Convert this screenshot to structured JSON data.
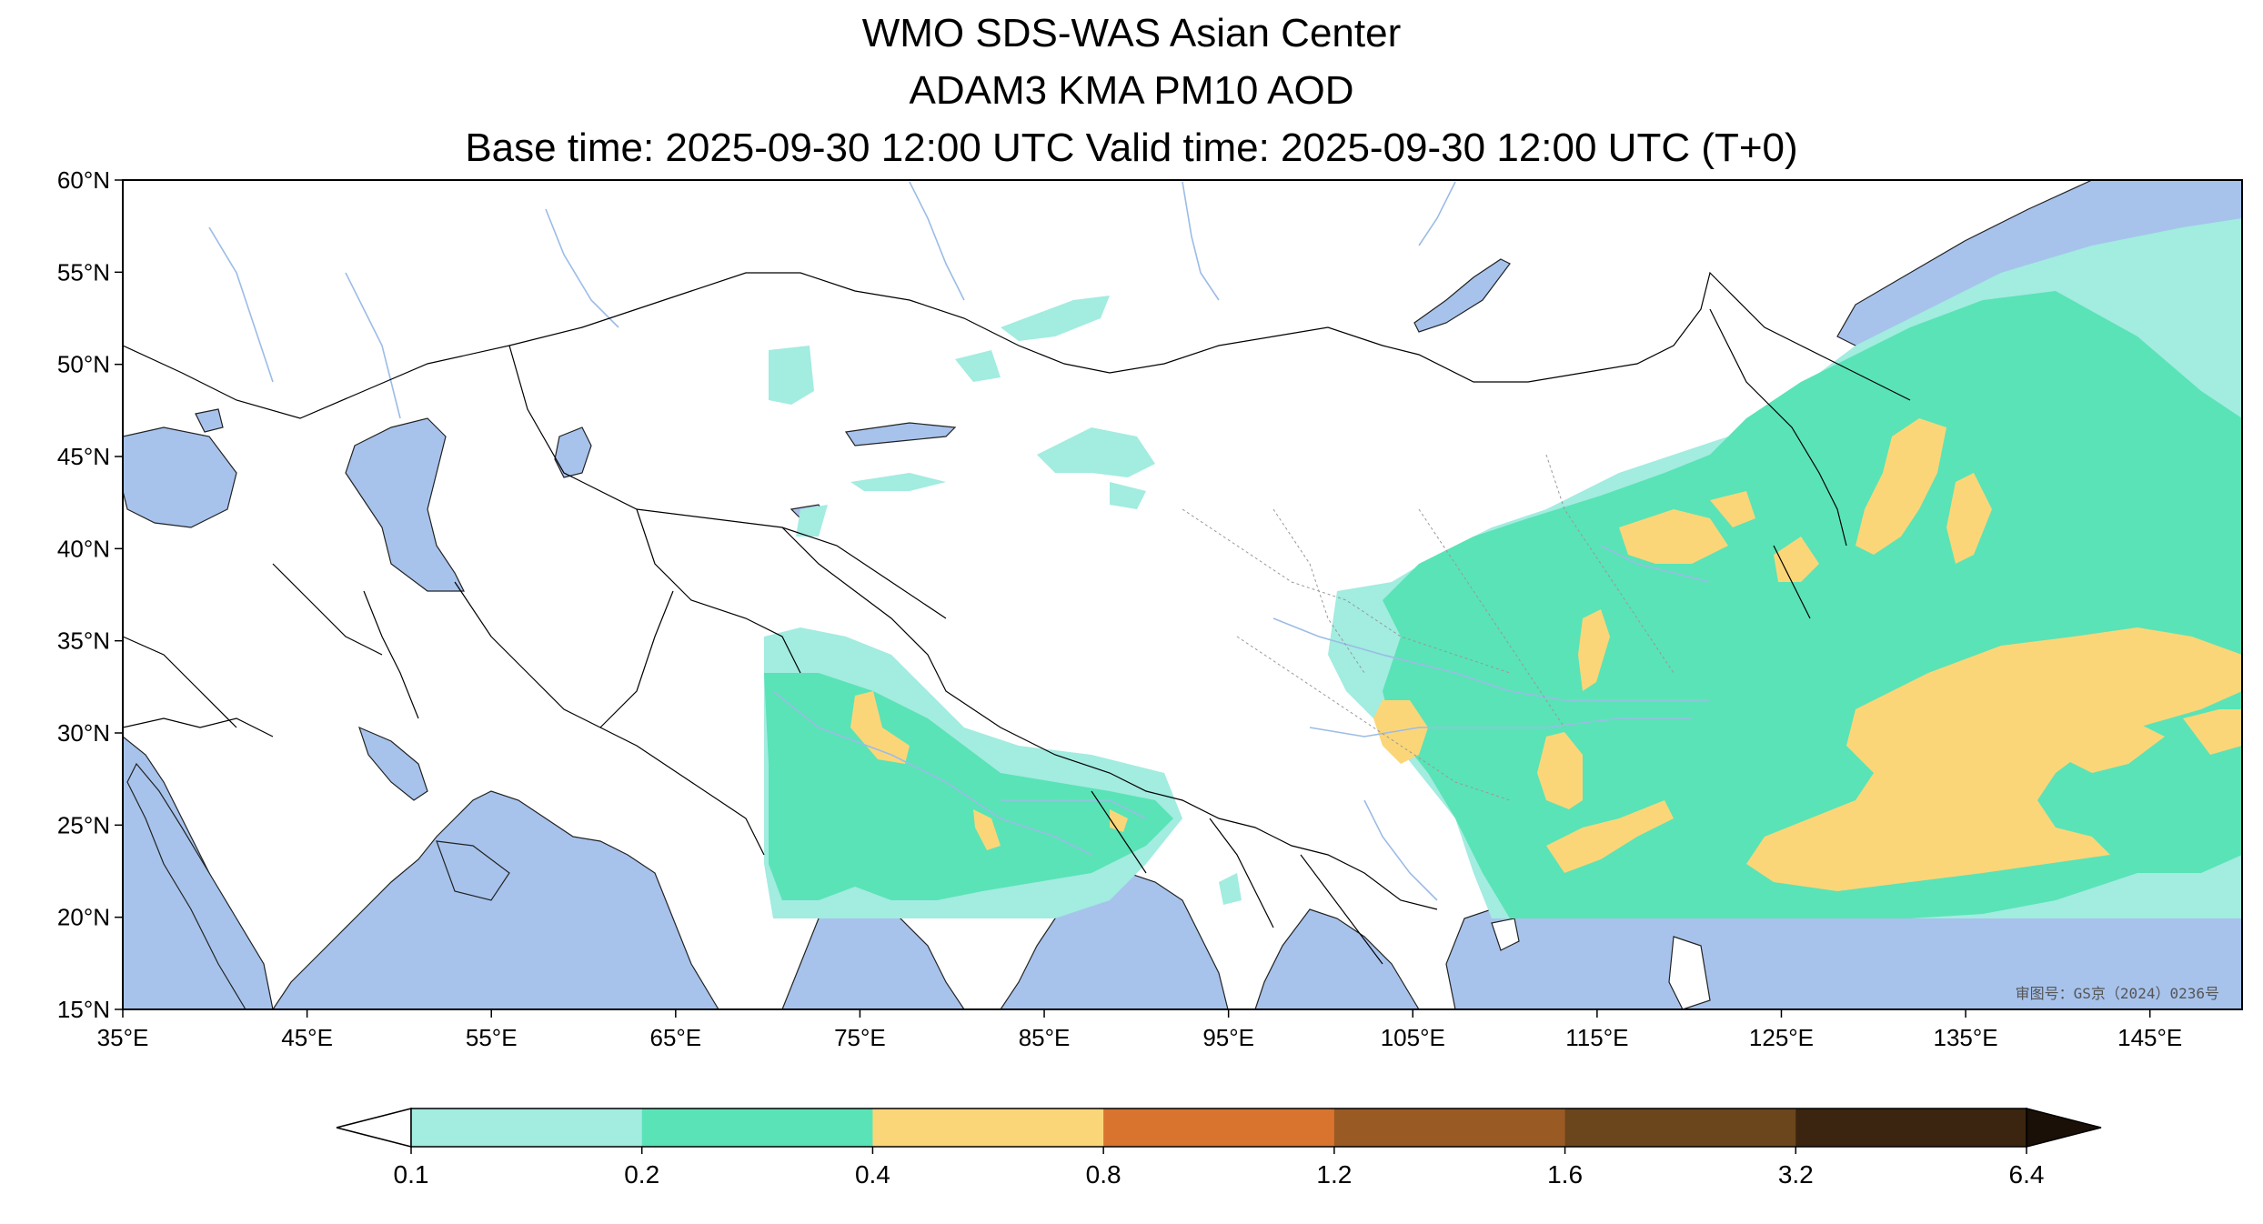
{
  "title": {
    "line1": "WMO SDS-WAS Asian Center",
    "line2": "ADAM3 KMA PM10 AOD",
    "line3": "Base time: 2025-09-30 12:00 UTC Valid time: 2025-09-30 12:00 UTC (T+0)"
  },
  "map": {
    "lon_range": [
      35,
      150
    ],
    "lat_range": [
      15,
      60
    ],
    "x_ticks": [
      "35°E",
      "45°E",
      "55°E",
      "65°E",
      "75°E",
      "85°E",
      "95°E",
      "105°E",
      "115°E",
      "125°E",
      "135°E",
      "145°E"
    ],
    "y_ticks": [
      "60°N",
      "55°N",
      "50°N",
      "45°N",
      "40°N",
      "35°N",
      "30°N",
      "25°N",
      "20°N",
      "15°N"
    ],
    "land_color": "#ffffff",
    "ocean_color": "#a7c3ec",
    "approval_stamp": "审图号：GS京（2024）0236号"
  },
  "colorbar": {
    "boundaries": [
      "0.1",
      "0.2",
      "0.4",
      "0.8",
      "1.2",
      "1.6",
      "3.2",
      "6.4"
    ],
    "colors": [
      "#a2ece0",
      "#5ae3b6",
      "#fbd679",
      "#d9742e",
      "#9a5a24",
      "#6b451b",
      "#3b2510"
    ],
    "extend": "both"
  }
}
